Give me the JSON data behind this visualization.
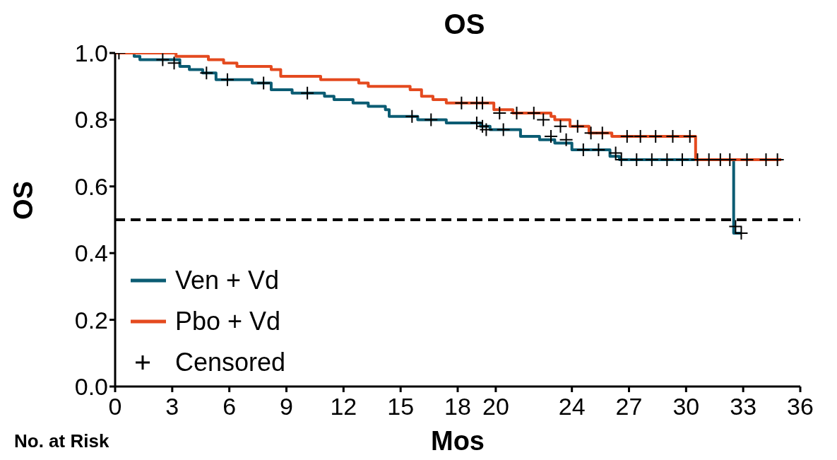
{
  "chart_data": {
    "type": "step",
    "title": "OS",
    "xlabel": "Mos",
    "ylabel": "OS",
    "xlim": [
      0,
      36
    ],
    "xticks": [
      0,
      3,
      6,
      9,
      12,
      15,
      18,
      20,
      24,
      27,
      30,
      33,
      36
    ],
    "ylim": [
      0,
      1.0
    ],
    "yticks": [
      {
        "value": 0,
        "label": "0.0"
      },
      {
        "value": 0.2,
        "label": "0.2"
      },
      {
        "value": 0.4,
        "label": "0.4"
      },
      {
        "value": 0.6,
        "label": "0.6"
      },
      {
        "value": 0.8,
        "label": "0.8"
      },
      {
        "value": 1.0,
        "label": "1.0"
      }
    ],
    "grid": false,
    "legend": "bottom left",
    "series": [
      {
        "name": "Ven + Vd",
        "color": "#0b5c73",
        "marker": "none",
        "x": [
          0,
          1.0,
          1.3,
          3.4,
          3.9,
          4.6,
          5.3,
          7.2,
          8.2,
          9.3,
          11.0,
          11.5,
          12.5,
          13.3,
          14.2,
          14.4,
          15.9,
          17.4,
          19.2,
          19.7,
          21.3,
          22.3,
          23.1,
          24.0,
          24.6,
          26.0,
          26.5,
          32.5,
          32.9
        ],
        "values": [
          1.0,
          0.99,
          0.98,
          0.96,
          0.95,
          0.94,
          0.92,
          0.91,
          0.89,
          0.88,
          0.87,
          0.86,
          0.85,
          0.84,
          0.83,
          0.81,
          0.8,
          0.79,
          0.78,
          0.77,
          0.75,
          0.74,
          0.73,
          0.71,
          0.71,
          0.69,
          0.68,
          0.46,
          0.46
        ]
      },
      {
        "name": "Pbo + Vd",
        "color": "#e44a1f",
        "marker": "none",
        "x": [
          0,
          3.2,
          4.9,
          5.7,
          6.4,
          8.2,
          8.7,
          10.8,
          12.8,
          13.3,
          15.5,
          16.1,
          16.7,
          17.4,
          19.9,
          20.9,
          22.9,
          23.1,
          23.9,
          24.9,
          26.1,
          30.5,
          35.0
        ],
        "values": [
          1.0,
          0.99,
          0.98,
          0.97,
          0.96,
          0.95,
          0.93,
          0.92,
          0.91,
          0.9,
          0.89,
          0.87,
          0.86,
          0.85,
          0.83,
          0.82,
          0.81,
          0.8,
          0.78,
          0.76,
          0.75,
          0.68,
          0.68
        ]
      },
      {
        "name": "Censored",
        "type": "scatter",
        "color": "#000000",
        "marker": "cross",
        "x": [
          0.2,
          2.5,
          3.1,
          4.8,
          5.9,
          7.8,
          10.1,
          15.6,
          16.6,
          18.2,
          19.0,
          19.3,
          19.0,
          19.3,
          19.5,
          20.2,
          21.1,
          22.0,
          20.4,
          22.5,
          23.4,
          22.9,
          23.7,
          24.3,
          25.0,
          25.6,
          24.6,
          25.4,
          26.3,
          26.9,
          27.6,
          28.4,
          29.3,
          30.2,
          26.6,
          27.4,
          28.2,
          29.0,
          29.8,
          30.6,
          31.2,
          31.8,
          32.3,
          33.2,
          34.2,
          34.8,
          32.6,
          32.9
        ],
        "values": [
          1.0,
          0.98,
          0.97,
          0.94,
          0.92,
          0.91,
          0.88,
          0.81,
          0.8,
          0.85,
          0.85,
          0.85,
          0.79,
          0.78,
          0.77,
          0.82,
          0.82,
          0.82,
          0.77,
          0.8,
          0.78,
          0.75,
          0.74,
          0.78,
          0.76,
          0.76,
          0.71,
          0.71,
          0.7,
          0.75,
          0.75,
          0.75,
          0.75,
          0.75,
          0.68,
          0.68,
          0.68,
          0.68,
          0.68,
          0.68,
          0.68,
          0.68,
          0.68,
          0.68,
          0.68,
          0.68,
          0.48,
          0.46
        ]
      }
    ],
    "ref_lines": [
      {
        "axis": "y",
        "value": 0.5,
        "color": "#000000",
        "line_style": "dashed"
      }
    ],
    "annotations": [
      "No. at Risk"
    ]
  }
}
